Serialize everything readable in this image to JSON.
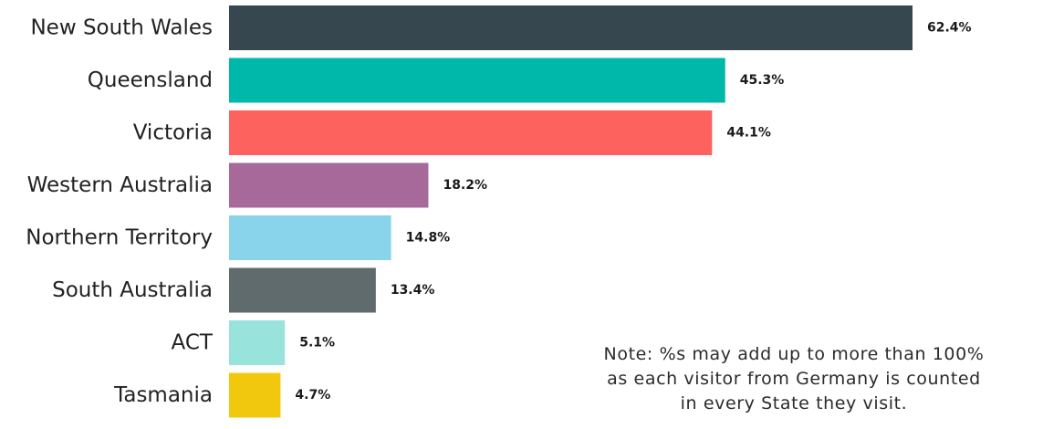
{
  "chart_data": {
    "type": "bar",
    "orientation": "horizontal",
    "title": "",
    "xlabel": "",
    "ylabel": "",
    "grid": false,
    "categories": [
      "New South Wales",
      "Queensland",
      "Victoria",
      "Western Australia",
      "Northern Territory",
      "South Australia",
      "ACT",
      "Tasmania"
    ],
    "values": [
      62.4,
      45.3,
      44.1,
      18.2,
      14.8,
      13.4,
      5.1,
      4.7
    ],
    "value_labels": [
      "62.4%",
      "45.3%",
      "44.1%",
      "18.2%",
      "14.8%",
      "13.4%",
      "5.1%",
      "4.7%"
    ],
    "colors": [
      "#37474f",
      "#00b8aa",
      "#fd625e",
      "#a66999",
      "#8ad4eb",
      "#5f6b6d",
      "#99e3dd",
      "#f2c80f"
    ],
    "xlim": [
      0,
      62.4
    ]
  },
  "note": {
    "lines": [
      "Note: %s may add up to more than 100%",
      "as each visitor from Germany is counted",
      "in every State they visit."
    ]
  }
}
